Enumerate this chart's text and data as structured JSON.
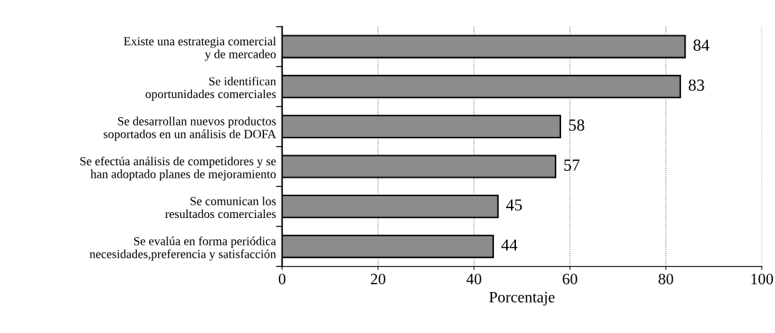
{
  "chart_data": {
    "type": "bar",
    "orientation": "horizontal",
    "xlabel": "Porcentaje",
    "categories": [
      "Existe una estrategia comercial\ny de mercadeo",
      "Se identifican\noportunidades comerciales",
      "Se desarrollan nuevos productos\nsoportados en un análisis de DOFA",
      "Se efectúa análisis de competidores y se\nhan adoptado planes de mejoramiento",
      "Se comunican los\nresultados comerciales",
      "Se evalúa en forma periódica\nnecesidades,preferencia y satisfacción"
    ],
    "values": [
      84,
      83,
      58,
      57,
      45,
      44
    ],
    "color": "#8c8c8c",
    "xlim": [
      0,
      100
    ],
    "xticks": [
      0,
      20,
      40,
      60,
      80,
      100
    ],
    "grid": "x",
    "data_labels": true
  }
}
